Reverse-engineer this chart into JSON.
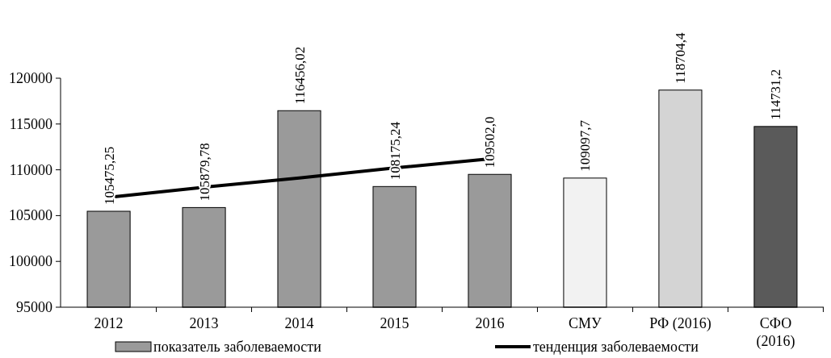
{
  "chart_data": {
    "type": "bar",
    "categories": [
      "2012",
      "2013",
      "2014",
      "2015",
      "2016",
      "СМУ",
      "РФ (2016)",
      "СФО (2016)"
    ],
    "ylim": [
      95000,
      120000
    ],
    "yticks": [
      95000,
      100000,
      105000,
      110000,
      115000,
      120000
    ],
    "grid": false,
    "legend": "bottom",
    "series": [
      {
        "name": "показатель заболеваемости",
        "values": [
          105475.25,
          105879.78,
          116456.02,
          108175.24,
          109502.0,
          109097.7,
          118704.4,
          114731.2
        ],
        "colors": [
          "#9a9a9a",
          "#9a9a9a",
          "#9a9a9a",
          "#9a9a9a",
          "#9a9a9a",
          "#f2f2f2",
          "#d4d4d4",
          "#5a5a5a"
        ],
        "value_labels": [
          "105475,25",
          "105879,78",
          "116456,02",
          "108175,24",
          "109502,0",
          "109097,7",
          "118704,4",
          "114731,2"
        ]
      },
      {
        "name": "тенденция заболеваемости",
        "type": "line",
        "color": "#000000",
        "values": [
          107000,
          108100,
          109100,
          110200,
          111200,
          null,
          null,
          null
        ]
      }
    ]
  }
}
